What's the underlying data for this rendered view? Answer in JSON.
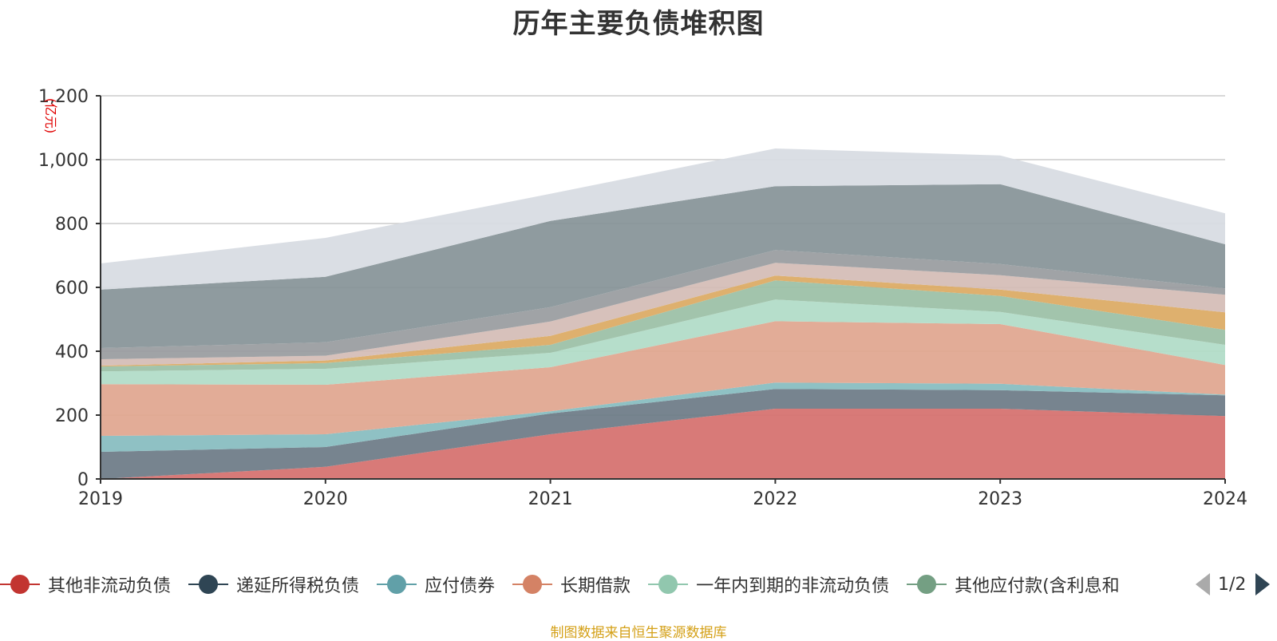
{
  "chart_data": {
    "type": "area",
    "stacked": true,
    "title": "历年主要负债堆积图",
    "ylabel": "(亿元)",
    "ylim": [
      0,
      1200
    ],
    "yticks": [
      "0",
      "200",
      "400",
      "600",
      "800",
      "1,000",
      "1,200"
    ],
    "categories": [
      "2019",
      "2020",
      "2021",
      "2022",
      "2023",
      "2024"
    ],
    "grid": true,
    "legend_position": "bottom",
    "series": [
      {
        "name": "其他非流动负债",
        "color": "#d5706e",
        "values": [
          0,
          38,
          140,
          220,
          220,
          197
        ]
      },
      {
        "name": "递延所得税负债",
        "color": "#6d7b87",
        "values": [
          85,
          62,
          65,
          62,
          58,
          65
        ]
      },
      {
        "name": "应付债券",
        "color": "#86bcc0",
        "values": [
          50,
          40,
          7,
          20,
          20,
          2
        ]
      },
      {
        "name": "长期借款",
        "color": "#e0a68f",
        "values": [
          162,
          155,
          138,
          192,
          187,
          93
        ]
      },
      {
        "name": "一年内到期的非流动负债",
        "color": "#b0dbc7",
        "values": [
          40,
          50,
          45,
          68,
          38,
          63
        ]
      },
      {
        "name": "其他应付款(含利息和",
        "color": "#9bbfa6",
        "values": [
          15,
          18,
          25,
          60,
          50,
          47
        ]
      },
      {
        "name": "",
        "color": "#dcaa63",
        "values": [
          3,
          8,
          28,
          15,
          20,
          55
        ]
      },
      {
        "name": "",
        "color": "#d4bcb6",
        "values": [
          20,
          15,
          45,
          40,
          45,
          55
        ]
      },
      {
        "name": "",
        "color": "#999c9f",
        "values": [
          35,
          42,
          45,
          40,
          35,
          20
        ]
      },
      {
        "name": "",
        "color": "#879398",
        "values": [
          183,
          205,
          270,
          200,
          250,
          138
        ]
      },
      {
        "name": "",
        "color": "#d7dce2",
        "values": [
          82,
          122,
          85,
          118,
          90,
          97
        ]
      }
    ]
  },
  "legend": {
    "items": [
      {
        "label": "其他非流动负债",
        "color": "#c23531"
      },
      {
        "label": "递延所得税负债",
        "color": "#2f4554"
      },
      {
        "label": "应付债券",
        "color": "#61a0a8"
      },
      {
        "label": "长期借款",
        "color": "#d48265"
      },
      {
        "label": "一年内到期的非流动负债",
        "color": "#91c7ae"
      },
      {
        "label": "其他应付款(含利息和",
        "color": "#749f83"
      }
    ],
    "page_indicator": "1/2"
  },
  "source_note": "制图数据来自恒生聚源数据库"
}
